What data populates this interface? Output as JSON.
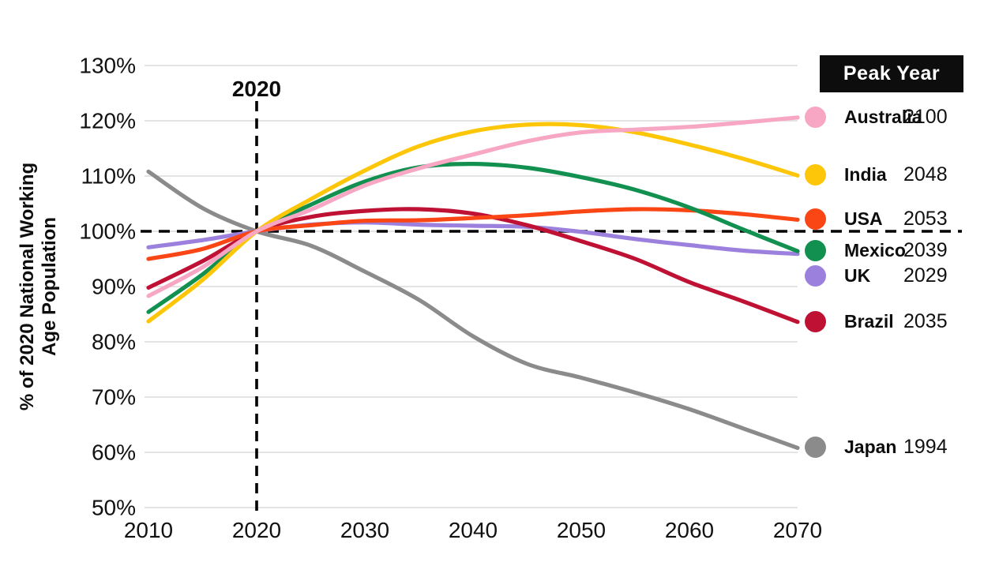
{
  "chart_data": {
    "type": "line",
    "title": "",
    "ylabel": "% of 2020 National Working Age Population",
    "ylabel_lines": [
      "% of 2020 National Working",
      "Age Population"
    ],
    "xlabel": "",
    "xlim": [
      2010,
      2070
    ],
    "ylim": [
      50,
      130
    ],
    "x_ticks": [
      2010,
      2020,
      2030,
      2040,
      2050,
      2060,
      2070
    ],
    "y_ticks": [
      130,
      120,
      110,
      100,
      90,
      80,
      70,
      60,
      50
    ],
    "y_tick_suffix": "%",
    "grid": true,
    "legend_title": "Peak Year",
    "legend_position": "right",
    "reference_lines": {
      "horizontal": {
        "y": 100,
        "style": "dashed",
        "color": "#000000"
      },
      "vertical": {
        "x": 2020,
        "style": "dashed",
        "color": "#000000",
        "label": "2020"
      }
    },
    "x": [
      2010,
      2015,
      2020,
      2025,
      2030,
      2035,
      2040,
      2045,
      2050,
      2055,
      2060,
      2065,
      2070
    ],
    "series": [
      {
        "name": "Japan",
        "peak_year": "1994",
        "color": "#8B8B8B",
        "values": [
          110.8,
          104.2,
          100,
          97.4,
          92.7,
          87.6,
          81.0,
          76.0,
          73.5,
          70.8,
          67.8,
          64.3,
          60.8
        ]
      },
      {
        "name": "UK",
        "peak_year": "2029",
        "color": "#9C80DD",
        "values": [
          97.1,
          98.4,
          100,
          101.2,
          101.6,
          101.2,
          101.0,
          100.8,
          99.9,
          98.6,
          97.5,
          96.5,
          95.9
        ]
      },
      {
        "name": "Brazil",
        "peak_year": "2035",
        "color": "#BE1133",
        "values": [
          89.8,
          94.6,
          100,
          102.6,
          103.7,
          104.0,
          103.2,
          101.1,
          98.2,
          95.0,
          90.8,
          87.3,
          83.6
        ]
      },
      {
        "name": "USA",
        "peak_year": "2053",
        "color": "#FA4515",
        "values": [
          95.0,
          96.8,
          100,
          101.1,
          101.9,
          102.0,
          102.4,
          102.9,
          103.6,
          104.0,
          103.8,
          103.1,
          102.1
        ]
      },
      {
        "name": "Mexico",
        "peak_year": "2039",
        "color": "#12904F",
        "values": [
          85.4,
          92.2,
          100,
          104.8,
          109.0,
          111.6,
          112.2,
          111.5,
          109.8,
          107.5,
          104.3,
          100.3,
          96.4
        ]
      },
      {
        "name": "India",
        "peak_year": "2048",
        "color": "#FDC608",
        "values": [
          83.7,
          91.2,
          100,
          105.8,
          111.0,
          115.4,
          118.1,
          119.3,
          119.2,
          117.9,
          115.7,
          113.1,
          110.1
        ]
      },
      {
        "name": "Australia",
        "peak_year": "2100",
        "color": "#F7A6C3",
        "values": [
          88.3,
          93.5,
          100,
          103.9,
          108.3,
          111.4,
          113.9,
          116.3,
          117.9,
          118.4,
          118.9,
          119.7,
          120.6
        ]
      }
    ],
    "legend_order": [
      "Australia",
      "India",
      "USA",
      "Mexico",
      "UK",
      "Brazil",
      "Japan"
    ]
  }
}
